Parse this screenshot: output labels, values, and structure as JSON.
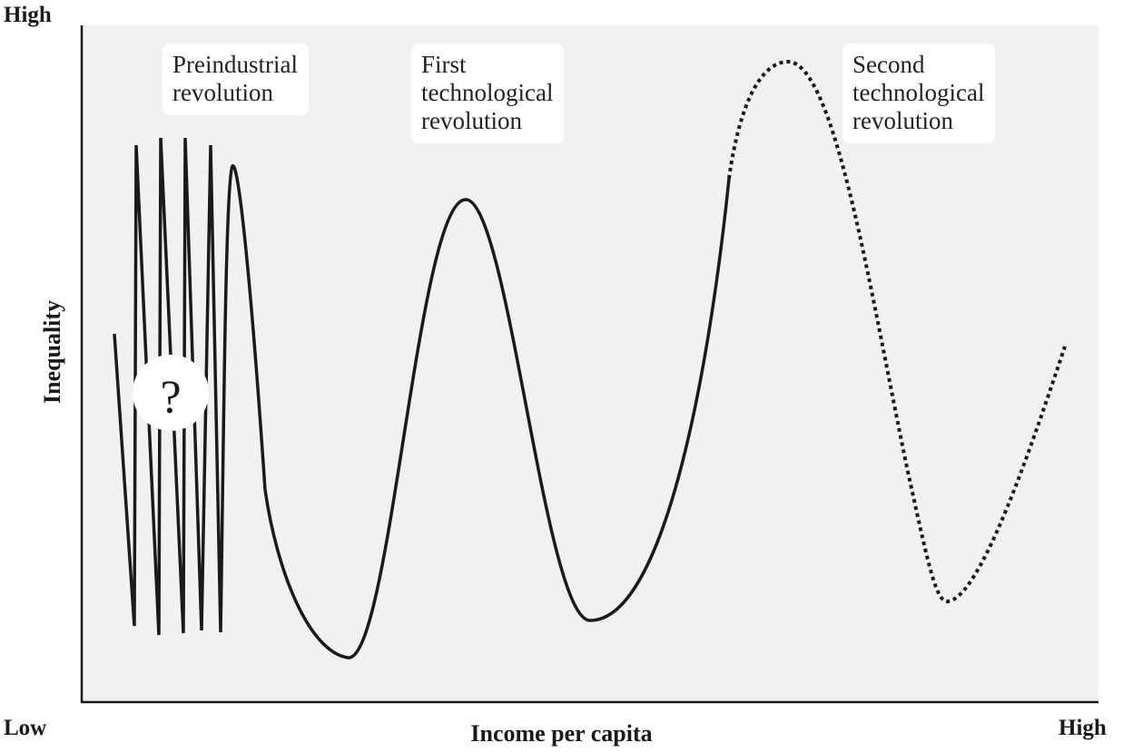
{
  "axes": {
    "y_top_label": "High",
    "x_left_label": "Low",
    "x_right_label": "High",
    "x_title": "Income per capita",
    "y_title": "Inequality"
  },
  "annotations": {
    "preindustrial": [
      "Preindustrial",
      "revolution"
    ],
    "first": [
      "First",
      "technological",
      "revolution"
    ],
    "second": [
      "Second",
      "technological",
      "revolution"
    ],
    "unknown_marker": "?"
  },
  "colors": {
    "plot_background": "#f1f1f3",
    "curve": "#1a1a1a",
    "axis": "#1a1a1a",
    "label_background": "#ffffff"
  },
  "curve_styles": {
    "observed_segment": "solid",
    "projected_segment": "dotted"
  }
}
